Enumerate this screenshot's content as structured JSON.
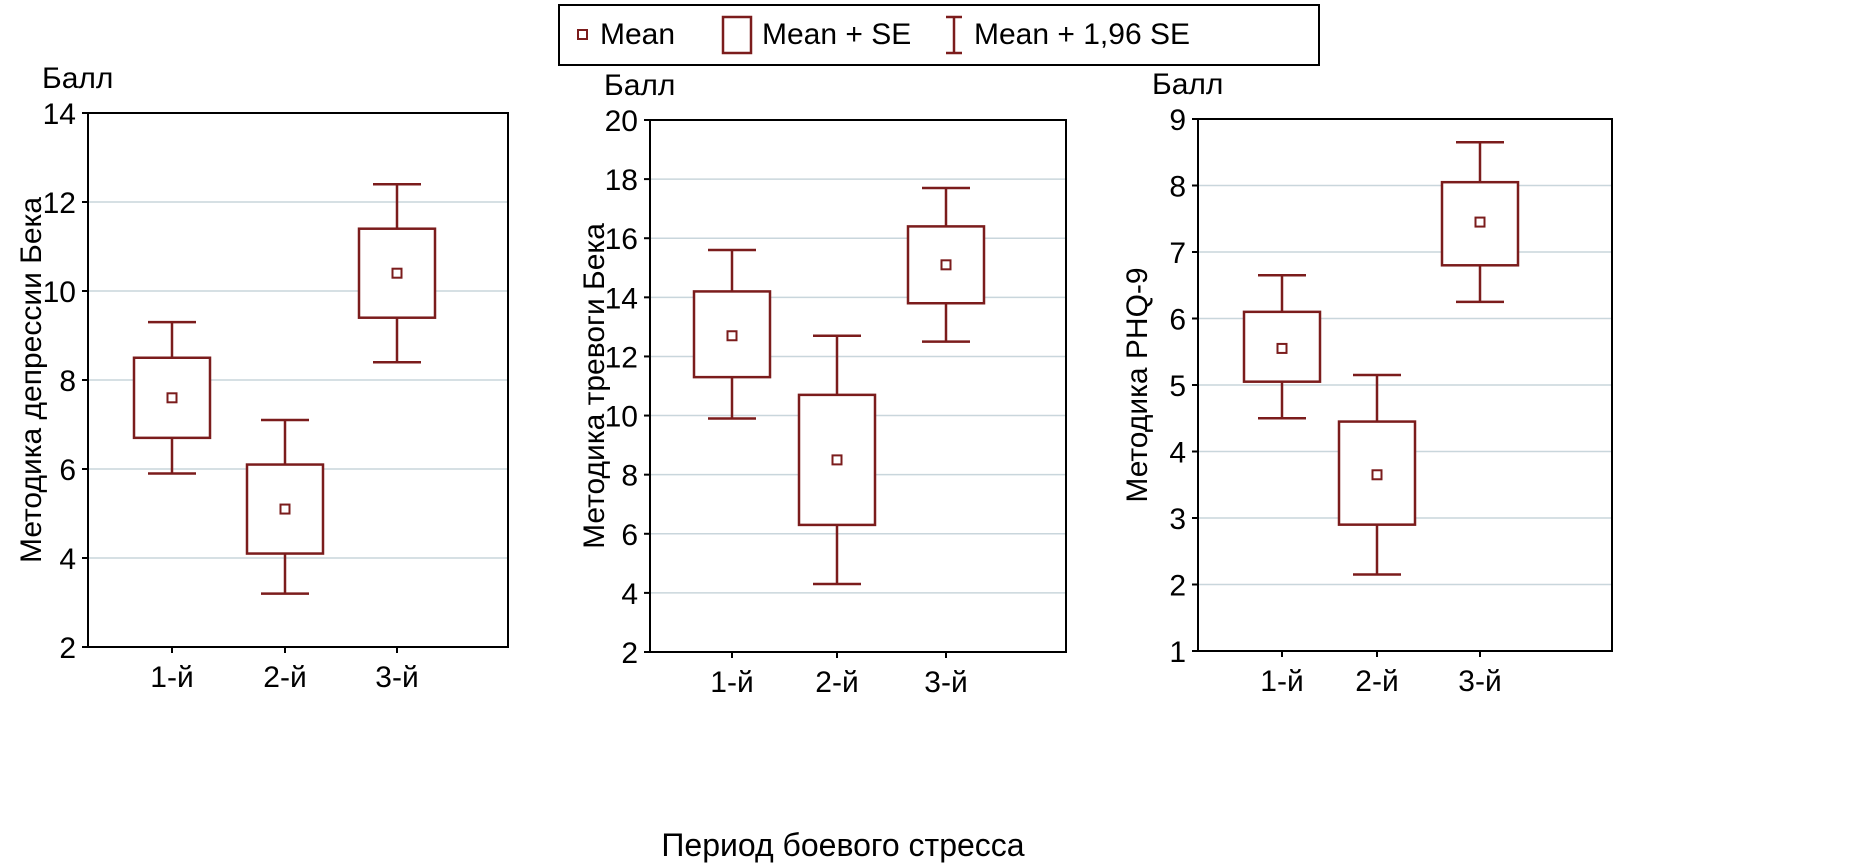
{
  "legend": {
    "mean": "Mean",
    "se": "Mean + SE",
    "ci": "Mean + 1,96 SE"
  },
  "xlabel": "Период боевого стресса",
  "colors": {
    "box": "#7b1c1c",
    "grid": "#c9d6dc",
    "axis": "#000000"
  },
  "chart_data": [
    {
      "type": "box",
      "unit_label": "Балл",
      "ylabel": "Методика депрессии Бека",
      "ylim": [
        2,
        14
      ],
      "yticks": [
        2,
        4,
        6,
        8,
        10,
        12,
        14
      ],
      "categories": [
        "1-й",
        "2-й",
        "3-й"
      ],
      "mean": [
        7.6,
        5.1,
        10.4
      ],
      "mean_minus_se": [
        6.7,
        4.1,
        9.4
      ],
      "mean_plus_se": [
        8.5,
        6.1,
        11.4
      ],
      "mean_minus_1_96se": [
        5.9,
        3.2,
        8.4
      ],
      "mean_plus_1_96se": [
        9.3,
        7.1,
        12.4
      ]
    },
    {
      "type": "box",
      "unit_label": "Балл",
      "ylabel": "Методика тревоги Бека",
      "ylim": [
        2,
        20
      ],
      "yticks": [
        2,
        4,
        6,
        8,
        10,
        12,
        14,
        16,
        18,
        20
      ],
      "categories": [
        "1-й",
        "2-й",
        "3-й"
      ],
      "mean": [
        12.7,
        8.5,
        15.1
      ],
      "mean_minus_se": [
        11.3,
        6.3,
        13.8
      ],
      "mean_plus_se": [
        14.2,
        10.7,
        16.4
      ],
      "mean_minus_1_96se": [
        9.9,
        4.3,
        12.5
      ],
      "mean_plus_1_96se": [
        15.6,
        12.7,
        17.7
      ]
    },
    {
      "type": "box",
      "unit_label": "Балл",
      "ylabel": "Методика PHQ-9",
      "ylim": [
        1,
        9
      ],
      "yticks": [
        1,
        2,
        3,
        4,
        5,
        6,
        7,
        8,
        9
      ],
      "categories": [
        "1-й",
        "2-й",
        "3-й"
      ],
      "mean": [
        5.55,
        3.65,
        7.45
      ],
      "mean_minus_se": [
        5.05,
        2.9,
        6.8
      ],
      "mean_plus_se": [
        6.1,
        4.45,
        8.05
      ],
      "mean_minus_1_96se": [
        4.5,
        2.15,
        6.25
      ],
      "mean_plus_1_96se": [
        6.65,
        5.15,
        8.65
      ]
    }
  ]
}
